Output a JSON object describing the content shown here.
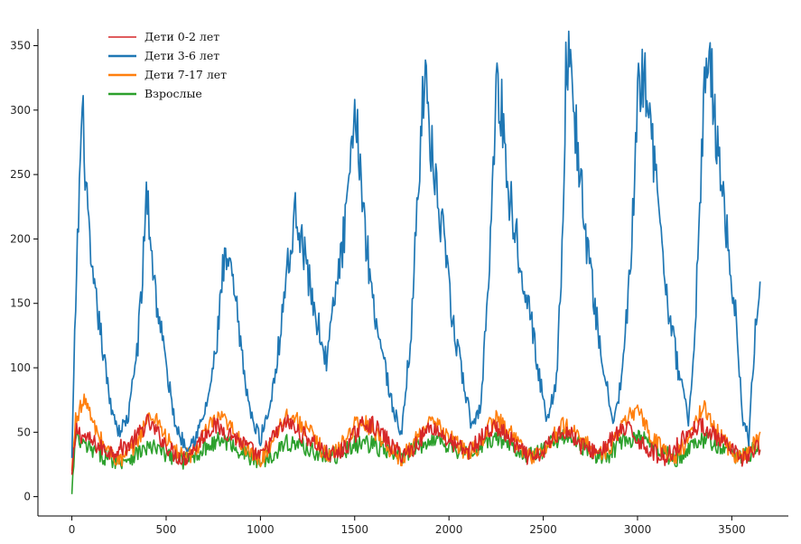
{
  "chart_data": {
    "type": "line",
    "title": "",
    "xlabel": "",
    "ylabel": "",
    "xlim": [
      -180,
      3800
    ],
    "ylim": [
      -15,
      363
    ],
    "xticks": [
      0,
      500,
      1000,
      1500,
      2000,
      2500,
      3000,
      3500
    ],
    "yticks": [
      0,
      50,
      100,
      150,
      200,
      250,
      300,
      350
    ],
    "xtick_labels": [
      "0",
      "500",
      "1000",
      "1500",
      "2000",
      "2500",
      "3000",
      "3500"
    ],
    "ytick_labels": [
      "0",
      "50",
      "100",
      "150",
      "200",
      "250",
      "300",
      "350"
    ],
    "grid": false,
    "legend_position": "top-left",
    "series": [
      {
        "name": "Дети 0-2 лет",
        "color": "#d62728",
        "x": [
          0,
          25,
          50,
          100,
          150,
          200,
          250,
          300,
          350,
          400,
          450,
          500,
          550,
          600,
          650,
          700,
          750,
          800,
          850,
          900,
          950,
          1000,
          1050,
          1100,
          1150,
          1200,
          1250,
          1300,
          1350,
          1400,
          1450,
          1500,
          1550,
          1600,
          1650,
          1700,
          1750,
          1800,
          1850,
          1900,
          1950,
          2000,
          2050,
          2100,
          2150,
          2200,
          2250,
          2300,
          2350,
          2400,
          2450,
          2500,
          2550,
          2600,
          2650,
          2700,
          2750,
          2800,
          2850,
          2900,
          2950,
          3000,
          3050,
          3100,
          3150,
          3200,
          3250,
          3300,
          3350,
          3400,
          3450,
          3500,
          3550,
          3600,
          3650
        ],
        "y": [
          17,
          52,
          48,
          43,
          38,
          35,
          37,
          40,
          47,
          58,
          50,
          40,
          32,
          30,
          38,
          48,
          55,
          52,
          48,
          42,
          36,
          30,
          42,
          52,
          58,
          50,
          46,
          40,
          33,
          32,
          38,
          48,
          58,
          55,
          48,
          38,
          33,
          36,
          45,
          55,
          50,
          43,
          38,
          35,
          42,
          50,
          54,
          48,
          40,
          33,
          28,
          35,
          45,
          52,
          48,
          40,
          36,
          35,
          42,
          50,
          52,
          45,
          38,
          33,
          30,
          38,
          46,
          53,
          55,
          48,
          42,
          35,
          30,
          33,
          40
        ]
      },
      {
        "name": "Дети 3-6 лет",
        "color": "#1f77b4",
        "x": [
          0,
          20,
          40,
          55,
          70,
          90,
          110,
          130,
          150,
          200,
          250,
          300,
          350,
          375,
          395,
          420,
          450,
          480,
          500,
          550,
          600,
          650,
          700,
          740,
          770,
          800,
          830,
          870,
          900,
          950,
          1000,
          1050,
          1100,
          1130,
          1160,
          1190,
          1230,
          1280,
          1350,
          1400,
          1450,
          1490,
          1510,
          1530,
          1560,
          1600,
          1650,
          1700,
          1750,
          1800,
          1840,
          1860,
          1880,
          1920,
          1970,
          2020,
          2070,
          2120,
          2170,
          2200,
          2230,
          2250,
          2280,
          2320,
          2370,
          2420,
          2470,
          2520,
          2570,
          2600,
          2620,
          2640,
          2680,
          2720,
          2770,
          2820,
          2870,
          2920,
          2970,
          3000,
          3020,
          3050,
          3080,
          3120,
          3170,
          3220,
          3270,
          3300,
          3330,
          3350,
          3380,
          3420,
          3470,
          3520,
          3560,
          3590,
          3620,
          3650
        ],
        "y": [
          30,
          150,
          240,
          300,
          260,
          200,
          165,
          150,
          130,
          75,
          50,
          62,
          120,
          170,
          240,
          195,
          150,
          125,
          100,
          55,
          40,
          45,
          62,
          90,
          120,
          175,
          182,
          150,
          110,
          62,
          45,
          70,
          120,
          165,
          190,
          225,
          190,
          150,
          105,
          160,
          210,
          270,
          297,
          255,
          200,
          150,
          110,
          70,
          48,
          130,
          250,
          325,
          310,
          250,
          200,
          135,
          95,
          55,
          70,
          150,
          230,
          320,
          300,
          235,
          190,
          155,
          100,
          60,
          90,
          195,
          325,
          338,
          275,
          210,
          150,
          100,
          55,
          95,
          195,
          300,
          335,
          320,
          270,
          210,
          140,
          95,
          60,
          110,
          230,
          300,
          345,
          280,
          210,
          140,
          60,
          45,
          120,
          165
        ]
      },
      {
        "name": "Дети 7-17 лет",
        "color": "#ff7f0e",
        "x": [
          0,
          20,
          40,
          60,
          80,
          100,
          150,
          200,
          250,
          300,
          350,
          400,
          450,
          500,
          550,
          600,
          650,
          700,
          750,
          800,
          850,
          900,
          950,
          1000,
          1050,
          1100,
          1150,
          1200,
          1250,
          1300,
          1350,
          1400,
          1450,
          1500,
          1550,
          1600,
          1650,
          1700,
          1750,
          1800,
          1850,
          1900,
          1950,
          2000,
          2050,
          2100,
          2150,
          2200,
          2250,
          2300,
          2350,
          2400,
          2450,
          2500,
          2550,
          2600,
          2650,
          2700,
          2750,
          2800,
          2850,
          2900,
          2950,
          3000,
          3050,
          3100,
          3150,
          3200,
          3250,
          3300,
          3350,
          3400,
          3450,
          3500,
          3550,
          3600,
          3650
        ],
        "y": [
          20,
          60,
          68,
          72,
          75,
          60,
          45,
          35,
          28,
          32,
          45,
          60,
          62,
          45,
          35,
          30,
          35,
          48,
          58,
          60,
          52,
          42,
          32,
          28,
          40,
          55,
          65,
          58,
          52,
          42,
          32,
          35,
          45,
          55,
          58,
          52,
          45,
          35,
          30,
          38,
          50,
          58,
          53,
          48,
          40,
          33,
          38,
          52,
          60,
          55,
          45,
          35,
          32,
          35,
          45,
          55,
          52,
          45,
          38,
          32,
          38,
          50,
          60,
          70,
          52,
          42,
          35,
          32,
          40,
          55,
          70,
          55,
          45,
          35,
          30,
          38,
          45
        ]
      },
      {
        "name": "Взрослые",
        "color": "#2ca02c",
        "x": [
          0,
          10,
          20,
          40,
          60,
          100,
          150,
          200,
          250,
          300,
          350,
          400,
          450,
          500,
          550,
          600,
          650,
          700,
          750,
          800,
          850,
          900,
          950,
          1000,
          1050,
          1100,
          1150,
          1200,
          1250,
          1300,
          1350,
          1400,
          1450,
          1500,
          1550,
          1600,
          1650,
          1700,
          1750,
          1800,
          1850,
          1900,
          1950,
          2000,
          2050,
          2100,
          2150,
          2200,
          2250,
          2300,
          2350,
          2400,
          2450,
          2500,
          2550,
          2600,
          2650,
          2700,
          2750,
          2800,
          2850,
          2900,
          2950,
          3000,
          3050,
          3100,
          3150,
          3200,
          3250,
          3300,
          3350,
          3400,
          3450,
          3500,
          3550,
          3600,
          3650
        ],
        "y": [
          2,
          25,
          45,
          42,
          40,
          36,
          33,
          30,
          28,
          30,
          34,
          38,
          37,
          33,
          30,
          28,
          32,
          38,
          42,
          44,
          40,
          35,
          30,
          27,
          32,
          38,
          42,
          40,
          38,
          34,
          30,
          32,
          36,
          40,
          42,
          40,
          36,
          33,
          32,
          35,
          40,
          45,
          44,
          40,
          36,
          33,
          35,
          42,
          46,
          42,
          38,
          34,
          32,
          35,
          42,
          48,
          45,
          40,
          35,
          30,
          33,
          40,
          44,
          46,
          42,
          37,
          33,
          30,
          33,
          40,
          44,
          42,
          38,
          34,
          30,
          34,
          40
        ]
      }
    ]
  }
}
